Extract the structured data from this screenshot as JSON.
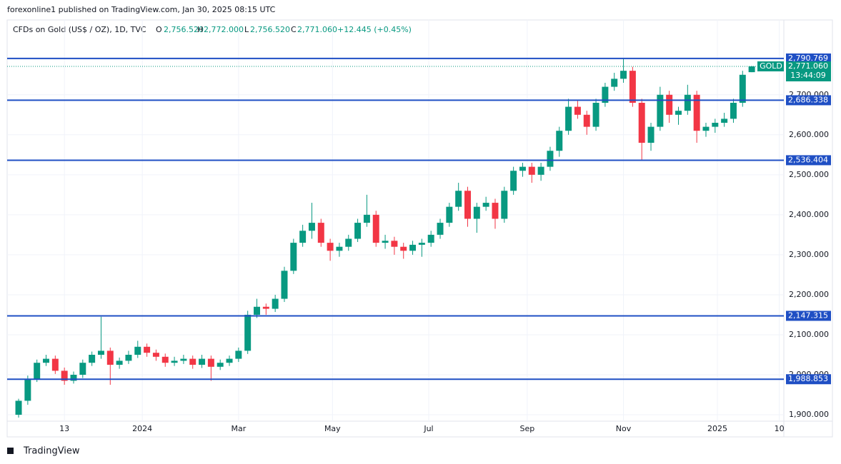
{
  "header": {
    "publisher": "forexonline1 published on TradingView.com, Jan 30, 2025 08:15 UTC",
    "symbol": "CFDs on Gold (US$ / OZ), 1D, TVC",
    "o_key": "O",
    "o": "2,756.520",
    "h_key": "H",
    "h": "2,772.000",
    "l_key": "L",
    "l": "2,756.520",
    "c_key": "C",
    "c": "2,771.060",
    "change": "+12.445 (+0.45%)"
  },
  "footer": {
    "brand": "TradingView"
  },
  "chart_data": {
    "type": "candlestick",
    "up_color": "#089981",
    "down_color": "#f23645",
    "grid": true,
    "x": [
      0,
      4,
      8,
      12,
      16,
      20,
      24,
      28,
      32,
      36,
      40,
      44,
      48,
      52,
      56,
      60,
      64,
      68,
      72,
      76,
      80,
      84,
      88,
      92,
      96,
      100,
      104,
      108,
      112,
      116,
      120,
      124,
      128,
      132,
      136,
      140,
      144,
      148,
      152,
      156,
      160,
      164,
      168,
      172,
      176,
      180,
      184,
      188,
      192,
      196,
      200,
      204,
      208,
      212,
      216,
      220,
      224,
      228,
      232,
      236,
      240,
      244,
      248,
      252,
      256,
      260,
      264,
      268,
      272,
      276,
      280,
      284,
      288,
      292,
      296,
      300,
      304,
      308,
      312,
      316,
      320
    ],
    "open": [
      1900,
      1935,
      1990,
      2030,
      2040,
      2010,
      1985,
      2000,
      2030,
      2050,
      2060,
      2025,
      2035,
      2050,
      2070,
      2055,
      2045,
      2030,
      2035,
      2040,
      2025,
      2040,
      2020,
      2030,
      2040,
      2060,
      2150,
      2170,
      2165,
      2190,
      2260,
      2330,
      2360,
      2380,
      2330,
      2310,
      2320,
      2340,
      2380,
      2400,
      2330,
      2335,
      2320,
      2310,
      2325,
      2330,
      2350,
      2380,
      2420,
      2460,
      2390,
      2420,
      2430,
      2390,
      2460,
      2510,
      2520,
      2500,
      2520,
      2560,
      2610,
      2670,
      2650,
      2620,
      2680,
      2720,
      2740,
      2760,
      2680,
      2580,
      2620,
      2700,
      2650,
      2660,
      2700,
      2610,
      2620,
      2630,
      2640,
      2680,
      2756.52
    ],
    "high": [
      1940,
      1998,
      2038,
      2050,
      2048,
      2018,
      2008,
      2038,
      2058,
      2145,
      2068,
      2043,
      2060,
      2085,
      2078,
      2063,
      2053,
      2045,
      2050,
      2048,
      2050,
      2048,
      2038,
      2048,
      2068,
      2160,
      2190,
      2178,
      2200,
      2270,
      2340,
      2375,
      2430,
      2390,
      2340,
      2330,
      2350,
      2390,
      2450,
      2410,
      2350,
      2345,
      2330,
      2335,
      2340,
      2360,
      2390,
      2430,
      2480,
      2470,
      2430,
      2445,
      2440,
      2470,
      2520,
      2530,
      2530,
      2530,
      2570,
      2620,
      2690,
      2685,
      2660,
      2690,
      2730,
      2755,
      2790,
      2770,
      2690,
      2630,
      2720,
      2710,
      2670,
      2725,
      2710,
      2630,
      2640,
      2655,
      2690,
      2760,
      2772
    ],
    "low": [
      1893,
      1925,
      1982,
      2022,
      2002,
      1975,
      1978,
      1992,
      2022,
      2040,
      1975,
      2015,
      2027,
      2042,
      2045,
      2035,
      2020,
      2022,
      2027,
      2015,
      2017,
      1985,
      2012,
      2022,
      2032,
      2052,
      2142,
      2150,
      2157,
      2182,
      2252,
      2320,
      2340,
      2320,
      2285,
      2295,
      2310,
      2332,
      2370,
      2320,
      2315,
      2300,
      2290,
      2300,
      2295,
      2320,
      2340,
      2370,
      2410,
      2370,
      2355,
      2410,
      2365,
      2380,
      2450,
      2495,
      2480,
      2485,
      2510,
      2545,
      2600,
      2640,
      2600,
      2610,
      2670,
      2710,
      2730,
      2670,
      2537,
      2560,
      2610,
      2630,
      2625,
      2650,
      2580,
      2595,
      2605,
      2620,
      2630,
      2670,
      2756.52
    ],
    "close": [
      1935,
      1990,
      2030,
      2040,
      2010,
      1985,
      2000,
      2030,
      2050,
      2060,
      2025,
      2035,
      2050,
      2070,
      2055,
      2045,
      2030,
      2035,
      2040,
      2025,
      2040,
      2020,
      2030,
      2040,
      2060,
      2150,
      2170,
      2165,
      2190,
      2260,
      2330,
      2360,
      2380,
      2330,
      2310,
      2320,
      2340,
      2380,
      2400,
      2330,
      2335,
      2320,
      2310,
      2325,
      2330,
      2350,
      2380,
      2420,
      2460,
      2390,
      2420,
      2430,
      2390,
      2460,
      2510,
      2520,
      2500,
      2520,
      2560,
      2610,
      2670,
      2650,
      2620,
      2680,
      2720,
      2740,
      2760,
      2680,
      2580,
      2620,
      2700,
      2650,
      2660,
      2700,
      2610,
      2620,
      2630,
      2640,
      2680,
      2750,
      2771.06
    ],
    "xlim": [
      -5,
      334
    ],
    "ylim": [
      1884,
      2887
    ],
    "xticks": [
      {
        "value": 20,
        "label": "13"
      },
      {
        "value": 54,
        "label": "2024"
      },
      {
        "value": 96,
        "label": "Mar"
      },
      {
        "value": 137,
        "label": "May"
      },
      {
        "value": 179,
        "label": "Jul"
      },
      {
        "value": 222,
        "label": "Sep"
      },
      {
        "value": 264,
        "label": "Nov"
      },
      {
        "value": 305,
        "label": "2025"
      },
      {
        "value": 332,
        "label": "10"
      }
    ],
    "yticks": [
      {
        "value": 1900,
        "label": "1,900.000"
      },
      {
        "value": 2000,
        "label": "2,000.000"
      },
      {
        "value": 2100,
        "label": "2,100.000"
      },
      {
        "value": 2200,
        "label": "2,200.000"
      },
      {
        "value": 2300,
        "label": "2,300.000"
      },
      {
        "value": 2400,
        "label": "2,400.000"
      },
      {
        "value": 2500,
        "label": "2,500.000"
      },
      {
        "value": 2600,
        "label": "2,600.000"
      },
      {
        "value": 2700,
        "label": "2,700.000"
      }
    ],
    "level_color": "#1f4fc4",
    "levels": [
      {
        "value": 2790.769,
        "label": "2,790.769"
      },
      {
        "value": 2686.338,
        "label": "2,686.338"
      },
      {
        "value": 2536.404,
        "label": "2,536.404"
      },
      {
        "value": 2147.315,
        "label": "2,147.315"
      },
      {
        "value": 1988.853,
        "label": "1,988.853"
      }
    ],
    "last_price": {
      "value": 2771.06,
      "label": "2,771.060",
      "symbol": "GOLD",
      "countdown": "13:44:09"
    }
  }
}
